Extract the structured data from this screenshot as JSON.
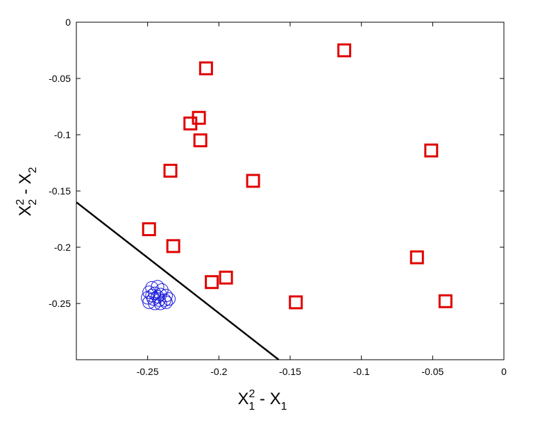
{
  "chart_data": {
    "type": "scatter",
    "title": "",
    "xlabel": {
      "base": "X",
      "sup": "2",
      "sub": "1",
      "rest": " - X",
      "rest_sub": "1"
    },
    "ylabel": {
      "base": "X",
      "sup": "2",
      "sub": "2",
      "rest": " - X",
      "rest_sub": "2"
    },
    "xlim": [
      -0.3,
      0
    ],
    "ylim": [
      -0.3,
      0
    ],
    "xticks": [
      -0.25,
      -0.2,
      -0.15,
      -0.1,
      -0.05,
      0
    ],
    "xtick_labels": [
      "-0.25",
      "-0.2",
      "-0.15",
      "-0.1",
      "-0.05",
      "0"
    ],
    "yticks": [
      0,
      -0.05,
      -0.1,
      -0.15,
      -0.2,
      -0.25
    ],
    "ytick_labels": [
      "0",
      "-0.05",
      "-0.1",
      "-0.15",
      "-0.2",
      "-0.25"
    ],
    "grid": false,
    "series": [
      {
        "marker": "square",
        "color": "#e00000",
        "points": [
          [
            -0.112,
            -0.025
          ],
          [
            -0.209,
            -0.041
          ],
          [
            -0.051,
            -0.114
          ],
          [
            -0.214,
            -0.085
          ],
          [
            -0.22,
            -0.09
          ],
          [
            -0.213,
            -0.105
          ],
          [
            -0.234,
            -0.132
          ],
          [
            -0.176,
            -0.141
          ],
          [
            -0.249,
            -0.184
          ],
          [
            -0.232,
            -0.199
          ],
          [
            -0.061,
            -0.209
          ],
          [
            -0.205,
            -0.231
          ],
          [
            -0.195,
            -0.227
          ],
          [
            -0.146,
            -0.249
          ],
          [
            -0.041,
            -0.248
          ]
        ]
      },
      {
        "marker": "circle",
        "color": "#1a1adb",
        "points": [
          [
            -0.247,
            -0.236
          ],
          [
            -0.243,
            -0.235
          ],
          [
            -0.24,
            -0.238
          ],
          [
            -0.249,
            -0.24
          ],
          [
            -0.245,
            -0.241
          ],
          [
            -0.241,
            -0.242
          ],
          [
            -0.237,
            -0.243
          ],
          [
            -0.25,
            -0.245
          ],
          [
            -0.246,
            -0.246
          ],
          [
            -0.242,
            -0.247
          ],
          [
            -0.238,
            -0.247
          ],
          [
            -0.235,
            -0.246
          ],
          [
            -0.249,
            -0.249
          ],
          [
            -0.245,
            -0.25
          ],
          [
            -0.241,
            -0.25
          ],
          [
            -0.237,
            -0.249
          ],
          [
            -0.243,
            -0.244
          ],
          [
            -0.247,
            -0.243
          ]
        ]
      }
    ],
    "lines": [
      {
        "color": "#000000",
        "points": [
          [
            -0.3,
            -0.16
          ],
          [
            -0.158,
            -0.3
          ]
        ]
      }
    ]
  }
}
